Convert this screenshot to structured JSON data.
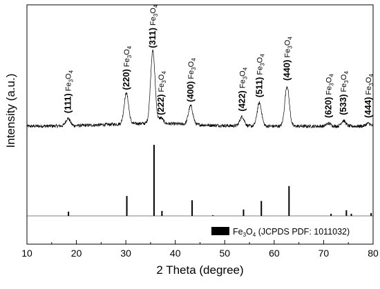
{
  "chart_data": {
    "type": "line",
    "xlabel": "2 Theta (degree)",
    "ylabel": "Intensity (a.u.)",
    "xlim": [
      10,
      80
    ],
    "xticks": [
      10,
      20,
      30,
      40,
      50,
      60,
      70,
      80
    ],
    "grid": false,
    "legend": {
      "placement": "bottom-right",
      "formula": {
        "Fe": "Fe",
        "sub1": "3",
        "O": "O",
        "sub2": "4"
      },
      "suffix": " (JCPDS PDF: 1011032)"
    },
    "peak_label_phase": {
      "Fe": "Fe",
      "sub1": "3",
      "O": "O",
      "sub2": "4"
    },
    "measured_pattern": {
      "baseline_level": 0.06,
      "noise_amplitude": 0.018,
      "peak_width_deg": 0.45,
      "peaks": [
        {
          "hkl": "(111)",
          "two_theta": 18.3,
          "intensity": 0.08
        },
        {
          "hkl": "(220)",
          "two_theta": 30.1,
          "intensity": 0.33
        },
        {
          "hkl": "(311)",
          "two_theta": 35.45,
          "intensity": 0.78
        },
        {
          "hkl": "(222)",
          "two_theta": 37.1,
          "intensity": 0.06
        },
        {
          "hkl": "(400)",
          "two_theta": 43.1,
          "intensity": 0.2
        },
        {
          "hkl": "(422)",
          "two_theta": 53.5,
          "intensity": 0.1
        },
        {
          "hkl": "(511)",
          "two_theta": 57.0,
          "intensity": 0.25
        },
        {
          "hkl": "(440)",
          "two_theta": 62.6,
          "intensity": 0.43
        },
        {
          "hkl": "(620)",
          "two_theta": 71.0,
          "intensity": 0.03
        },
        {
          "hkl": "(533)",
          "two_theta": 74.0,
          "intensity": 0.06
        },
        {
          "hkl": "(444)",
          "two_theta": 79.0,
          "intensity": 0.03
        }
      ]
    },
    "reference_pattern": {
      "name": "Fe3O4 (JCPDS PDF: 1011032)",
      "lines": [
        {
          "two_theta": 18.4,
          "intensity": 6
        },
        {
          "two_theta": 30.2,
          "intensity": 28
        },
        {
          "two_theta": 35.7,
          "intensity": 100
        },
        {
          "two_theta": 37.3,
          "intensity": 7
        },
        {
          "two_theta": 43.4,
          "intensity": 22
        },
        {
          "two_theta": 47.6,
          "intensity": 1
        },
        {
          "two_theta": 53.8,
          "intensity": 9
        },
        {
          "two_theta": 57.4,
          "intensity": 21
        },
        {
          "two_theta": 63.0,
          "intensity": 42
        },
        {
          "two_theta": 71.5,
          "intensity": 3
        },
        {
          "two_theta": 74.6,
          "intensity": 8
        },
        {
          "two_theta": 75.6,
          "intensity": 3
        },
        {
          "two_theta": 79.6,
          "intensity": 4
        }
      ]
    }
  }
}
